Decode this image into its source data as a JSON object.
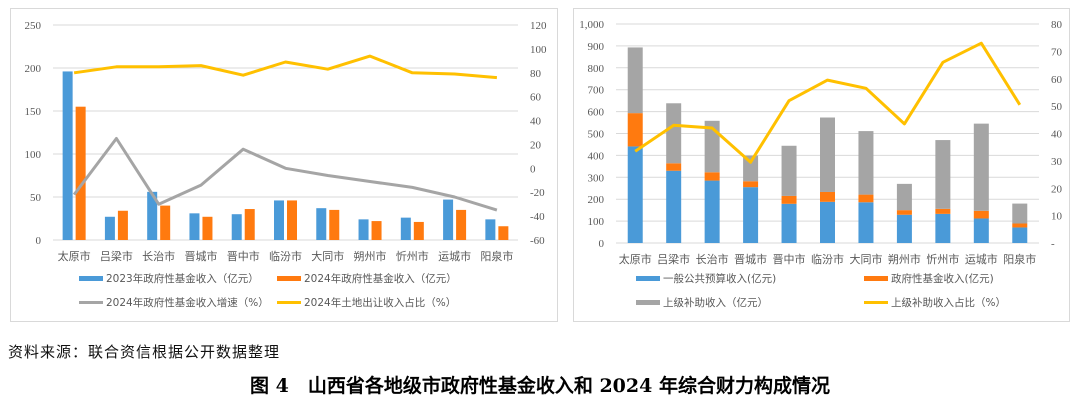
{
  "source_note": "资料来源：联合资信根据公开数据整理",
  "figure_caption": "图 4　山西省各地级市政府性基金收入和 2024 年综合财力构成情况",
  "chart_data": [
    {
      "type": "bar",
      "id": "fund-income",
      "title": "",
      "categories": [
        "太原市",
        "吕梁市",
        "长治市",
        "晋城市",
        "晋中市",
        "临汾市",
        "大同市",
        "朔州市",
        "忻州市",
        "运城市",
        "阳泉市"
      ],
      "y_left": {
        "range": [
          0,
          250
        ],
        "ticks": [
          0,
          50,
          100,
          150,
          200,
          250
        ],
        "tick_labels": [
          "0",
          "50",
          "100",
          "150",
          "200",
          "250"
        ]
      },
      "y_right": {
        "range": [
          -60,
          120
        ],
        "ticks": [
          -60,
          -40,
          -20,
          0,
          20,
          40,
          60,
          80,
          100,
          120
        ],
        "tick_labels": [
          "-60",
          "-40",
          "-20",
          "0",
          "20",
          "40",
          "60",
          "80",
          "100",
          "120"
        ]
      },
      "grid": true,
      "legend_position": "bottom",
      "series": [
        {
          "name": "2023年政府性基金收入（亿元）",
          "kind": "bar",
          "axis": "left",
          "color": "#4a9ad8",
          "values": [
            196,
            27,
            56,
            31,
            30,
            46,
            37,
            24,
            26,
            47,
            24
          ]
        },
        {
          "name": "2024年政府性基金收入（亿元）",
          "kind": "bar",
          "axis": "left",
          "color": "#ff7a0f",
          "values": [
            155,
            34,
            40,
            27,
            36,
            46,
            35,
            22,
            21,
            35,
            16
          ]
        },
        {
          "name": "2024年政府性基金收入增速（%）",
          "kind": "line",
          "axis": "right",
          "color": "#a5a5a5",
          "values": [
            -22,
            25,
            -30,
            -14,
            16,
            0,
            -6,
            -11,
            -16,
            -24,
            -35
          ]
        },
        {
          "name": "2024年土地出让收入占比（%）",
          "kind": "line",
          "axis": "right",
          "color": "#ffc000",
          "values": [
            80,
            85,
            85,
            86,
            78,
            89,
            83,
            94,
            80,
            79,
            76
          ]
        }
      ]
    },
    {
      "type": "bar",
      "id": "fiscal-composition",
      "title": "",
      "stacked": true,
      "categories": [
        "太原市",
        "吕梁市",
        "长治市",
        "晋城市",
        "晋中市",
        "临汾市",
        "大同市",
        "朔州市",
        "忻州市",
        "运城市",
        "阳泉市"
      ],
      "y_left": {
        "range": [
          0,
          1000
        ],
        "ticks": [
          0,
          100,
          200,
          300,
          400,
          500,
          600,
          700,
          800,
          900,
          1000
        ],
        "tick_labels": [
          "0",
          "100",
          "200",
          "300",
          "400",
          "500",
          "600",
          "700",
          "800",
          "900",
          "1,000"
        ]
      },
      "y_right": {
        "range": [
          0,
          80
        ],
        "ticks": [
          0,
          10,
          20,
          30,
          40,
          50,
          60,
          70,
          80
        ],
        "tick_labels": [
          "-",
          "10",
          "20",
          "30",
          "40",
          "50",
          "60",
          "70",
          "80"
        ]
      },
      "grid": true,
      "legend_position": "bottom",
      "series": [
        {
          "name": "一般公共预算收入(亿元)",
          "kind": "bar",
          "axis": "left",
          "color": "#4a9ad8",
          "values": [
            441,
            330,
            285,
            255,
            179,
            188,
            186,
            129,
            133,
            112,
            71
          ]
        },
        {
          "name": "政府性基金收入(亿元)",
          "kind": "bar",
          "axis": "left",
          "color": "#ff7a0f",
          "values": [
            152,
            34,
            38,
            27,
            36,
            45,
            35,
            21,
            23,
            35,
            18
          ]
        },
        {
          "name": "上级补助收入（亿元）",
          "kind": "bar",
          "axis": "left",
          "color": "#a5a5a5",
          "values": [
            300,
            274,
            235,
            117,
            229,
            340,
            290,
            120,
            314,
            398,
            91
          ]
        },
        {
          "name": "上级补助收入占比（%）",
          "kind": "line",
          "axis": "right",
          "color": "#ffc000",
          "values": [
            33.5,
            43,
            42,
            29.5,
            52,
            59.5,
            56.5,
            43.5,
            66,
            73,
            50.5
          ]
        }
      ]
    }
  ]
}
